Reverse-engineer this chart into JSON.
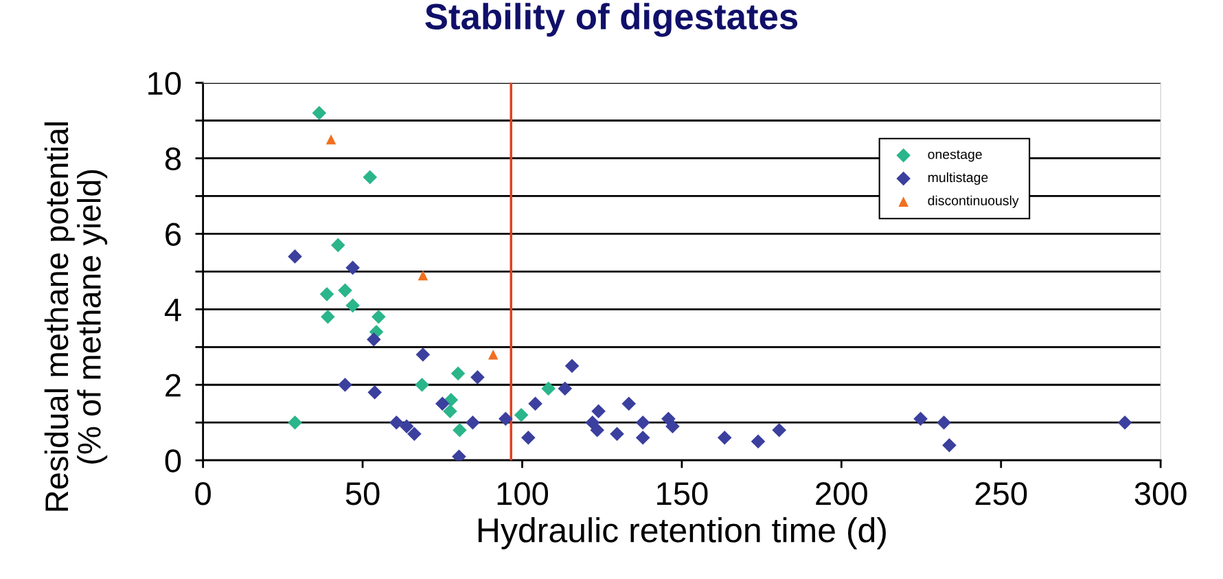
{
  "chart_data": {
    "type": "scatter",
    "title": "Stability of digestates",
    "xlabel": "Hydraulic retention time (d)",
    "ylabel": "Residual methane potential\n(% of methane yield)",
    "series": [
      {
        "name": "onestage",
        "color": "#2bb58a",
        "marker": "diamond",
        "x": [
          36.4,
          52.3,
          42.3,
          38.8,
          44.5,
          46.9,
          39.1,
          55.0,
          54.3,
          68.6,
          79.9,
          77.7,
          77.4,
          80.4,
          28.8,
          99.7,
          108.2
        ],
        "values": [
          9.2,
          7.5,
          5.7,
          4.4,
          4.5,
          4.1,
          3.8,
          3.8,
          3.4,
          2.0,
          2.3,
          1.6,
          1.3,
          0.8,
          1.0,
          1.2,
          1.9
        ]
      },
      {
        "name": "multistage",
        "color": "#3b3f9e",
        "marker": "diamond",
        "x": [
          28.8,
          46.9,
          53.5,
          68.9,
          44.5,
          53.8,
          86.0,
          75.0,
          60.6,
          63.8,
          66.2,
          84.5,
          80.2,
          94.8,
          101.9,
          104.1,
          113.4,
          115.6,
          123.9,
          122.0,
          123.5,
          129.7,
          133.4,
          137.8,
          137.8,
          145.8,
          147.1,
          163.4,
          173.9,
          180.5,
          224.8,
          232.1,
          233.8,
          288.8
        ],
        "values": [
          5.4,
          5.1,
          3.2,
          2.8,
          2.0,
          1.8,
          2.2,
          1.5,
          1.0,
          0.9,
          0.7,
          1.0,
          0.1,
          1.1,
          0.6,
          1.5,
          1.9,
          2.5,
          1.3,
          1.0,
          0.8,
          0.7,
          1.5,
          1.0,
          0.6,
          1.1,
          0.9,
          0.6,
          0.5,
          0.8,
          1.1,
          1.0,
          0.4,
          1.0
        ]
      },
      {
        "name": "discontinuously",
        "color": "#f07020",
        "marker": "triangle",
        "x": [
          40.1,
          68.9,
          90.9
        ],
        "values": [
          8.5,
          4.9,
          2.8
        ]
      }
    ],
    "xlim": [
      0,
      300
    ],
    "xticks": [
      0,
      50,
      100,
      150,
      200,
      250,
      300
    ],
    "ylim": [
      0,
      10
    ],
    "yticks": [
      0,
      {
        "value": 1,
        "label": null
      },
      2,
      {
        "value": 3,
        "label": null
      },
      4,
      {
        "value": 5,
        "label": null
      },
      6,
      {
        "value": 7,
        "label": null
      },
      8,
      {
        "value": 9,
        "label": null
      },
      10
    ],
    "ref_lines": [
      {
        "axis": "x",
        "value": 96.5,
        "label": null,
        "color": "#e0401f",
        "line_style": "solid"
      }
    ],
    "grid": "y",
    "legend": "top right"
  }
}
